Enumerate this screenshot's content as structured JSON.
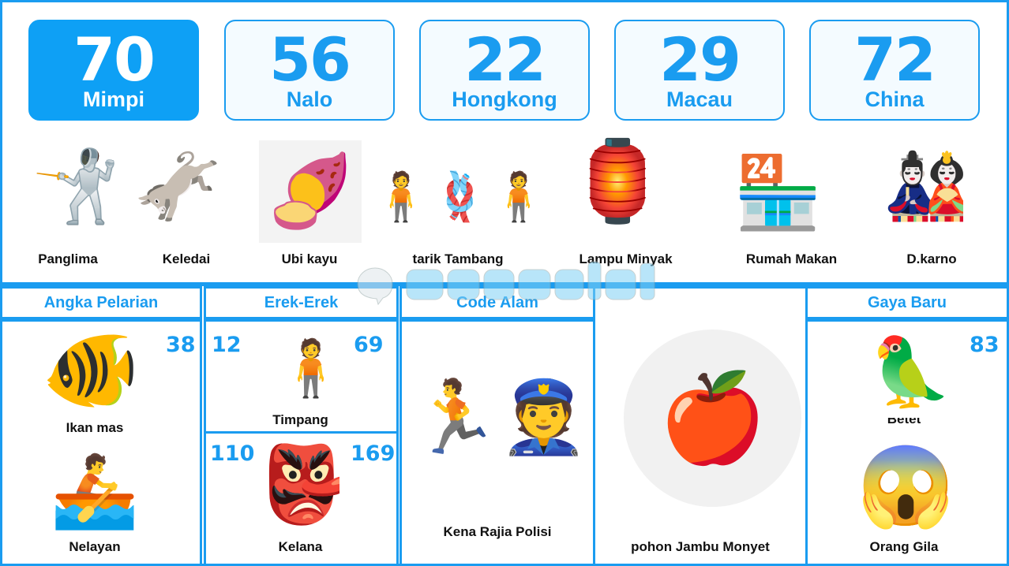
{
  "cards": [
    {
      "number": "70",
      "label": "Mimpi"
    },
    {
      "number": "56",
      "label": "Nalo"
    },
    {
      "number": "22",
      "label": "Hongkong"
    },
    {
      "number": "29",
      "label": "Macau"
    },
    {
      "number": "72",
      "label": "China"
    }
  ],
  "pictures": [
    "Panglima",
    "Keledai",
    "Ubi kayu",
    "tarik Tambang",
    "Lampu Minyak",
    "Rumah Makan",
    "D.karno"
  ],
  "watermark": "wazeslot",
  "sections": {
    "angka_pelarian": {
      "title": "Angka Pelarian",
      "number": "38",
      "item1": "Ikan mas",
      "item2": "Nelayan"
    },
    "erek_erek": {
      "title": "Erek-Erek",
      "top_left": "12",
      "top_right": "69",
      "top_label": "Timpang",
      "bottom_left": "110",
      "bottom_right": "169",
      "bottom_label": "Kelana"
    },
    "code_alam": {
      "title": "Code Alam",
      "label": "Kena Rajia Polisi"
    },
    "extra": {
      "label": "pohon Jambu Monyet"
    },
    "gaya_baru": {
      "title": "Gaya Baru",
      "number": "83",
      "item1": "Betet",
      "item2": "Orang Gila"
    }
  },
  "colors": {
    "accent": "#1a9cf0"
  }
}
